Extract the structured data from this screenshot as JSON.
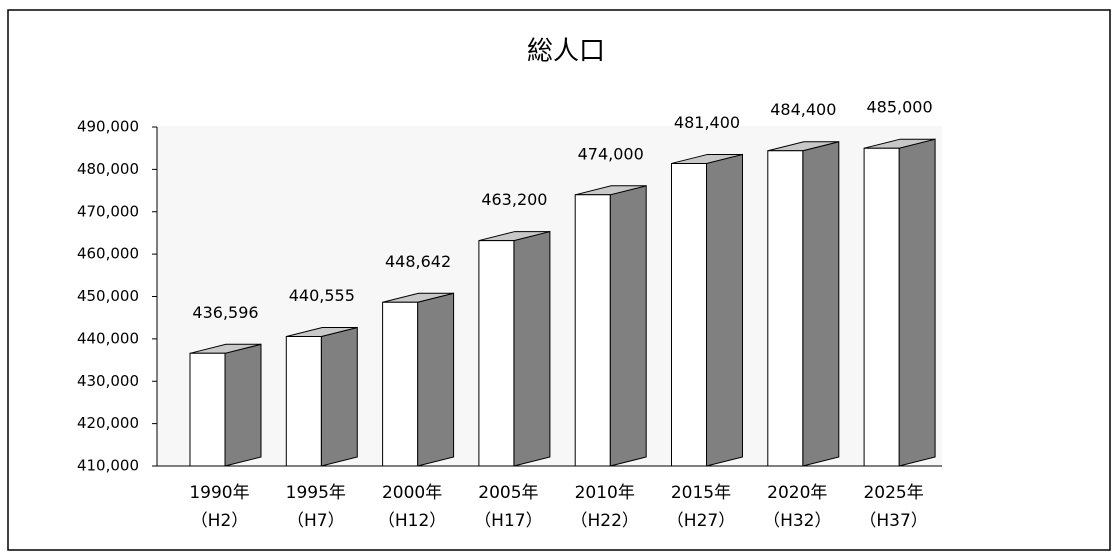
{
  "chart_data": {
    "type": "bar3d",
    "title": "総人口",
    "categories": [
      [
        "1990年",
        "（H2）"
      ],
      [
        "1995年",
        "（H7）"
      ],
      [
        "2000年",
        "（H12）"
      ],
      [
        "2005年",
        "（H17）"
      ],
      [
        "2010年",
        "（H22）"
      ],
      [
        "2015年",
        "（H27）"
      ],
      [
        "2020年",
        "（H32）"
      ],
      [
        "2025年",
        "（H37）"
      ]
    ],
    "values": [
      436596,
      440555,
      448642,
      463200,
      474000,
      481400,
      484400,
      485000
    ],
    "value_labels": [
      "436,596",
      "440,555",
      "448,642",
      "463,200",
      "474,000",
      "481,400",
      "484,400",
      "485,000"
    ],
    "colors": {
      "front": "#ffffff",
      "side": "#808080",
      "top": "#c8c8c8"
    },
    "ylim": [
      410000,
      490000
    ],
    "yticks": [
      {
        "value": 410000,
        "label": "410,000"
      },
      {
        "value": 420000,
        "label": "420,000"
      },
      {
        "value": 430000,
        "label": "430,000"
      },
      {
        "value": 440000,
        "label": "440,000"
      },
      {
        "value": 450000,
        "label": "450,000"
      },
      {
        "value": 460000,
        "label": "460,000"
      },
      {
        "value": 470000,
        "label": "470,000"
      },
      {
        "value": 480000,
        "label": "480,000"
      },
      {
        "value": 490000,
        "label": "490,000"
      }
    ]
  }
}
